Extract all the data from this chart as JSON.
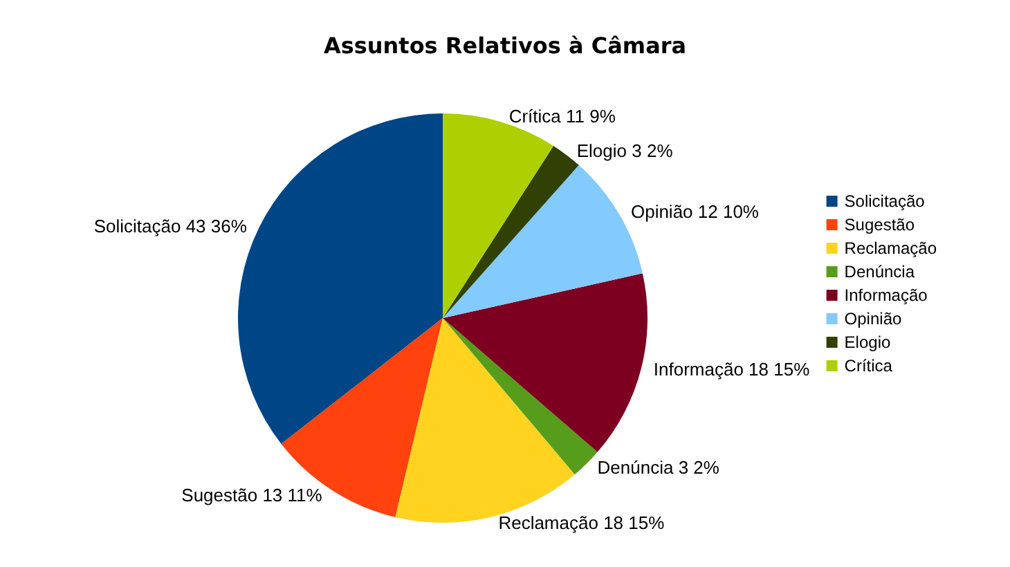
{
  "chart_data": {
    "type": "pie",
    "title": "Assuntos Relativos à Câmara",
    "categories": [
      "Solicitação",
      "Sugestão",
      "Reclamação",
      "Denúncia",
      "Informação",
      "Opinião",
      "Elogio",
      "Crítica"
    ],
    "values": [
      43,
      13,
      18,
      3,
      18,
      12,
      3,
      11
    ],
    "value_labels": [
      "43 36%",
      "13 11%",
      "18 15%",
      "3 2%",
      "18 15%",
      "12 10%",
      "3 2%",
      "11 9%"
    ],
    "colors": [
      "#004586",
      "#ff420e",
      "#ffd320",
      "#579d1c",
      "#7e0021",
      "#83caff",
      "#314004",
      "#aecf00"
    ],
    "legend": "right"
  }
}
